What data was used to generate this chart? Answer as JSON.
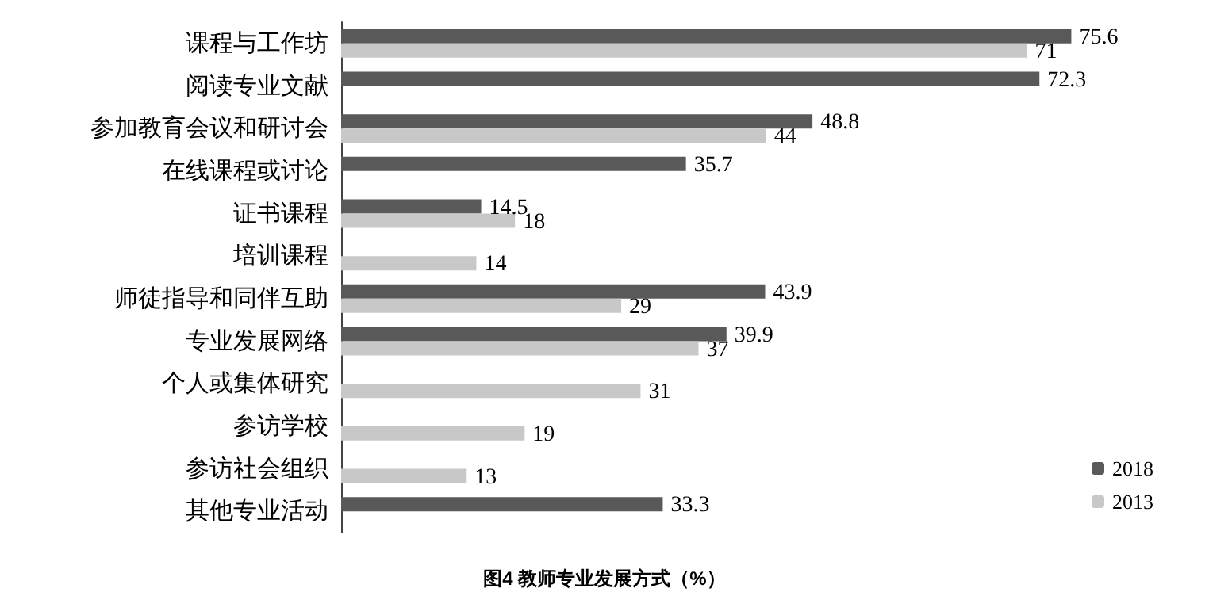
{
  "chart_data": {
    "type": "bar",
    "orientation": "horizontal",
    "title": "图4 教师专业发展方式（%）",
    "categories": [
      "课程与工作坊",
      "阅读专业文献",
      "参加教育会议和研讨会",
      "在线课程或讨论",
      "证书课程",
      "培训课程",
      "师徒指导和同伴互助",
      "专业发展网络",
      "个人或集体研究",
      "参访学校",
      "参访社会组织",
      "其他专业活动"
    ],
    "series": [
      {
        "name": "2018",
        "color": "#595959",
        "values": [
          75.6,
          72.3,
          48.8,
          35.7,
          14.5,
          null,
          43.9,
          39.9,
          null,
          null,
          null,
          33.3
        ]
      },
      {
        "name": "2013",
        "color": "#c8c8c8",
        "values": [
          71,
          null,
          44,
          null,
          18,
          14,
          29,
          37,
          31,
          19,
          13,
          null
        ]
      }
    ],
    "data_labels": true,
    "legend": "bottom right"
  }
}
